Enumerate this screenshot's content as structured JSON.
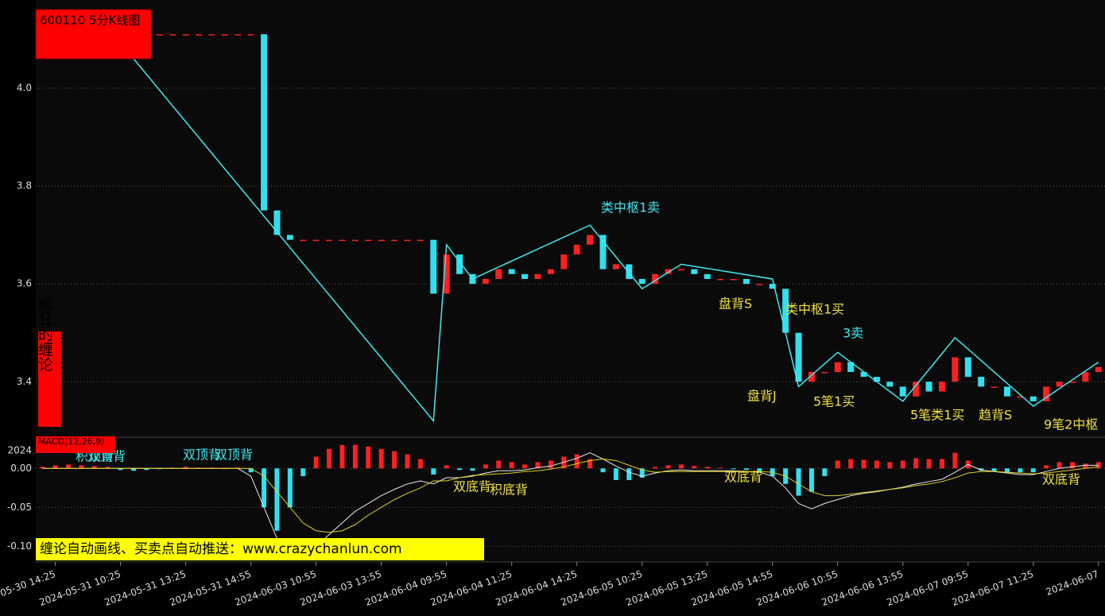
{
  "chart_data": [
    {
      "type": "candlestick",
      "title": "600110 5分K线图",
      "side_label": "疯狂的缠论",
      "banner": "缠论自动画线、买卖点自动推送：www.crazychanlun.com",
      "categories": [
        null,
        "2024-05-30 14:25",
        null,
        null,
        null,
        null,
        "2024-05-31 10:25",
        null,
        null,
        null,
        null,
        "2024-05-31 13:25",
        null,
        null,
        null,
        null,
        "2024-05-31 14:55",
        null,
        null,
        null,
        null,
        "2024-06-03 10:55",
        null,
        null,
        null,
        null,
        "2024-06-03 13:55",
        null,
        null,
        null,
        null,
        "2024-06-04 09:55",
        null,
        null,
        null,
        null,
        "2024-06-04 11:25",
        null,
        null,
        null,
        null,
        "2024-06-04 14:25",
        null,
        null,
        null,
        null,
        "2024-06-05 10:25",
        null,
        null,
        null,
        null,
        "2024-06-05 13:25",
        null,
        null,
        null,
        null,
        "2024-06-05 14:55",
        null,
        null,
        null,
        null,
        "2024-06-06 10:55",
        null,
        null,
        null,
        null,
        "2024-06-06 13:55",
        null,
        null,
        null,
        null,
        "2024-06-07 09:55",
        null,
        null,
        null,
        null,
        "2024-06-07 11:25",
        null,
        null,
        null,
        null,
        "2024-06-07"
      ],
      "series": [
        {
          "color": "#ff2020",
          "down_color": "#30e0f0",
          "values": [
            null,
            null,
            null,
            null,
            null,
            null,
            4.11,
            4.11,
            4.11,
            4.11,
            4.11,
            4.11,
            4.11,
            4.11,
            4.11,
            4.11,
            4.11,
            3.75,
            3.7,
            3.69,
            3.69,
            3.69,
            3.69,
            3.69,
            3.69,
            3.69,
            3.69,
            3.69,
            3.69,
            3.69,
            3.58,
            3.66,
            3.62,
            3.6,
            3.61,
            3.63,
            3.62,
            3.61,
            3.62,
            3.63,
            3.66,
            3.68,
            3.7,
            3.63,
            3.64,
            3.61,
            3.6,
            3.62,
            3.63,
            3.63,
            3.62,
            3.61,
            3.61,
            3.61,
            3.6,
            3.6,
            3.59,
            3.5,
            3.4,
            3.42,
            3.42,
            3.44,
            3.42,
            3.41,
            3.4,
            3.39,
            3.37,
            3.4,
            3.38,
            3.4,
            3.45,
            3.41,
            3.39,
            3.39,
            3.37,
            3.37,
            3.36,
            3.39,
            3.4,
            3.4,
            3.42,
            3.43
          ]
        },
        {
          "type": "line",
          "color": "#40e8f0",
          "connect_gaps": true,
          "values": [
            null,
            null,
            null,
            null,
            null,
            null,
            null,
            4.06,
            null,
            null,
            null,
            null,
            null,
            null,
            null,
            null,
            null,
            null,
            null,
            null,
            null,
            null,
            null,
            null,
            null,
            null,
            null,
            null,
            null,
            null,
            3.32,
            3.68,
            null,
            3.61,
            null,
            null,
            null,
            null,
            null,
            null,
            null,
            null,
            3.72,
            null,
            null,
            null,
            3.59,
            null,
            null,
            3.64,
            null,
            null,
            null,
            null,
            null,
            null,
            3.61,
            null,
            3.39,
            null,
            null,
            3.46,
            null,
            null,
            null,
            null,
            3.36,
            null,
            null,
            null,
            3.49,
            null,
            null,
            null,
            null,
            null,
            3.35,
            null,
            null,
            null,
            null,
            3.44
          ]
        }
      ],
      "ylim": [
        3.29,
        4.18
      ],
      "yticks": [
        {
          "value": 4,
          "label": "4.0"
        },
        3.8,
        3.6,
        3.4
      ],
      "grid": true,
      "annotations": [
        {
          "text": "类中枢1卖",
          "color": "#40e8f0"
        },
        {
          "text": "盘背S",
          "color": "#f0e040"
        },
        {
          "text": "类中枢1买",
          "color": "#f0e040"
        },
        {
          "text": "3卖",
          "color": "#40e8f0"
        },
        {
          "text": "盘背J",
          "color": "#f0e040"
        },
        {
          "text": "5笔1买",
          "color": "#f0e040"
        },
        {
          "text": "5笔类1买",
          "color": "#f0e040"
        },
        {
          "text": "趋背S",
          "color": "#f0e040"
        },
        {
          "text": "9笔2中枢",
          "color": "#f0e040"
        }
      ]
    },
    {
      "type": "macd",
      "title": "MACD(12,26,9)",
      "series": [
        {
          "type": "bar",
          "color": "#ff2020",
          "down_color": "#30e0f0",
          "values": [
            0.002,
            0.004,
            0.005,
            0.004,
            0.003,
            0.002,
            -0.002,
            -0.003,
            -0.002,
            -0.001,
            0.001,
            0.002,
            0.001,
            0.001,
            0,
            0.001,
            -0.005,
            -0.05,
            -0.08,
            -0.05,
            -0.01,
            0.015,
            0.025,
            0.03,
            0.03,
            0.028,
            0.025,
            0.022,
            0.018,
            0.012,
            -0.008,
            0.004,
            -0.002,
            -0.003,
            0.005,
            0.01,
            0.008,
            0.005,
            0.008,
            0.01,
            0.015,
            0.018,
            0.012,
            -0.005,
            -0.015,
            -0.015,
            -0.012,
            0.002,
            0.004,
            0.005,
            0.003,
            0.002,
            0.001,
            -0.001,
            -0.002,
            -0.005,
            -0.01,
            -0.02,
            -0.035,
            -0.03,
            -0.01,
            0.01,
            0.012,
            0.011,
            0.01,
            0.008,
            0.01,
            0.013,
            0.012,
            0.012,
            0.02,
            0.01,
            -0.003,
            -0.004,
            -0.005,
            -0.005,
            -0.005,
            0.004,
            0.008,
            0.008,
            0.006,
            0.008
          ]
        },
        {
          "type": "line",
          "color": "#e8e8e8",
          "values": [
            0,
            0,
            0,
            0,
            0,
            0,
            0,
            0,
            0,
            0,
            0,
            0,
            0,
            0,
            0,
            0,
            -0.01,
            -0.05,
            -0.09,
            -0.11,
            -0.115,
            -0.1,
            -0.085,
            -0.07,
            -0.055,
            -0.045,
            -0.035,
            -0.027,
            -0.02,
            -0.016,
            -0.02,
            -0.012,
            -0.012,
            -0.01,
            -0.006,
            -0.003,
            -0.003,
            -0.002,
            0.001,
            0.003,
            0.008,
            0.013,
            0.02,
            0.012,
            0.003,
            -0.005,
            -0.01,
            -0.006,
            -0.003,
            -0.002,
            -0.003,
            -0.003,
            -0.003,
            -0.003,
            -0.004,
            -0.005,
            -0.01,
            -0.025,
            -0.045,
            -0.052,
            -0.045,
            -0.04,
            -0.035,
            -0.032,
            -0.03,
            -0.027,
            -0.024,
            -0.02,
            -0.017,
            -0.014,
            -0.005,
            0.005,
            -0.002,
            -0.004,
            -0.006,
            -0.008,
            -0.008,
            -0.004,
            0,
            0.002,
            0.004,
            0.004
          ]
        },
        {
          "type": "line",
          "color": "#e0d020",
          "values": [
            0,
            0,
            0,
            0,
            0,
            0,
            0,
            0,
            0,
            0,
            0,
            0,
            0,
            0,
            0,
            0,
            0,
            -0.01,
            -0.03,
            -0.05,
            -0.07,
            -0.08,
            -0.082,
            -0.08,
            -0.072,
            -0.06,
            -0.05,
            -0.04,
            -0.032,
            -0.025,
            -0.016,
            -0.016,
            -0.012,
            -0.009,
            -0.008,
            -0.007,
            -0.006,
            -0.004,
            -0.003,
            -0.001,
            0.002,
            0.006,
            0.01,
            0.012,
            0.01,
            0.004,
            -0.002,
            -0.005,
            -0.004,
            -0.004,
            -0.004,
            -0.004,
            -0.004,
            -0.004,
            -0.004,
            -0.004,
            -0.005,
            -0.01,
            -0.02,
            -0.03,
            -0.035,
            -0.035,
            -0.033,
            -0.031,
            -0.029,
            -0.027,
            -0.025,
            -0.022,
            -0.02,
            -0.017,
            -0.012,
            -0.006,
            -0.004,
            -0.004,
            -0.005,
            -0.006,
            -0.007,
            -0.006,
            -0.004,
            -0.002,
            0,
            0.002
          ]
        }
      ],
      "ylim": [
        -0.118,
        0.038
      ],
      "yticks": [
        {
          "value": 0,
          "label": "0.00"
        },
        {
          "value": -0.05,
          "label": "-0.05"
        },
        {
          "value": -0.1,
          "label": "-0.10"
        }
      ],
      "top_label": "2024",
      "annotations": [
        {
          "text": "积顶背",
          "color": "#40e8f0"
        },
        {
          "text": "双顶背",
          "color": "#40e8f0"
        },
        {
          "text": "双顶背",
          "color": "#40e8f0"
        },
        {
          "text": "双顶背",
          "color": "#40e8f0"
        },
        {
          "text": "双底背",
          "color": "#f0e040"
        },
        {
          "text": "积底背",
          "color": "#f0e040"
        },
        {
          "text": "双底背",
          "color": "#f0e040"
        },
        {
          "text": "双底背",
          "color": "#f0e040"
        }
      ]
    }
  ]
}
